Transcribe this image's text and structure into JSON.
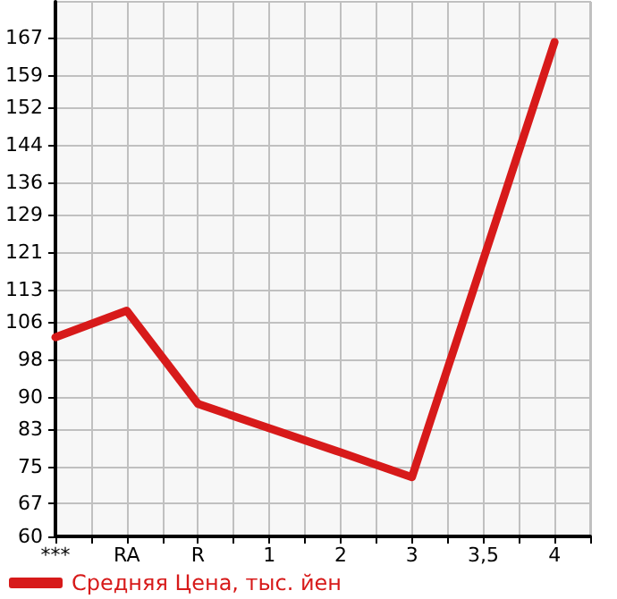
{
  "chart_data": {
    "type": "line",
    "categories": [
      "***",
      "RA",
      "R",
      "1",
      "2",
      "3",
      "3,5",
      "4"
    ],
    "series": [
      {
        "name": "Средняя Цена, тыс. йен",
        "color": "#d71a1a",
        "values": [
          102.7,
          108.4,
          88.4,
          83.2,
          78.0,
          72.7,
          119.3,
          166
        ]
      }
    ],
    "ylim": [
      60,
      174.64
    ],
    "yticks": [
      60,
      67,
      75,
      83,
      90,
      98,
      106,
      113,
      121,
      129,
      136,
      144,
      152,
      159,
      167
    ],
    "grid": true,
    "legend": "bottom left",
    "marker": "none",
    "line_style": "solid"
  }
}
